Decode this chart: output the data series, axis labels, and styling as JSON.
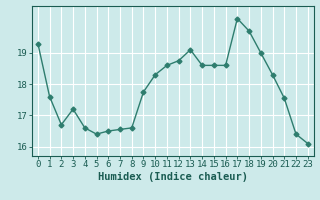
{
  "x": [
    0,
    1,
    2,
    3,
    4,
    5,
    6,
    7,
    8,
    9,
    10,
    11,
    12,
    13,
    14,
    15,
    16,
    17,
    18,
    19,
    20,
    21,
    22,
    23
  ],
  "y": [
    19.3,
    17.6,
    16.7,
    17.2,
    16.6,
    16.4,
    16.5,
    16.55,
    16.6,
    17.75,
    18.3,
    18.6,
    18.75,
    19.1,
    18.6,
    18.6,
    18.6,
    20.1,
    19.7,
    19.0,
    18.3,
    17.55,
    16.4,
    16.1
  ],
  "line_color": "#2e7d6e",
  "marker": "D",
  "markersize": 2.5,
  "linewidth": 1.0,
  "background_color": "#cdeaea",
  "grid_color": "#ffffff",
  "xlabel": "Humidex (Indice chaleur)",
  "xlim": [
    -0.5,
    23.5
  ],
  "ylim": [
    15.7,
    20.5
  ],
  "yticks": [
    16,
    17,
    18,
    19
  ],
  "xticks": [
    0,
    1,
    2,
    3,
    4,
    5,
    6,
    7,
    8,
    9,
    10,
    11,
    12,
    13,
    14,
    15,
    16,
    17,
    18,
    19,
    20,
    21,
    22,
    23
  ],
  "tick_color": "#1a5c52",
  "label_color": "#1a5c52",
  "xlabel_fontsize": 7.5,
  "tick_fontsize": 6.5
}
